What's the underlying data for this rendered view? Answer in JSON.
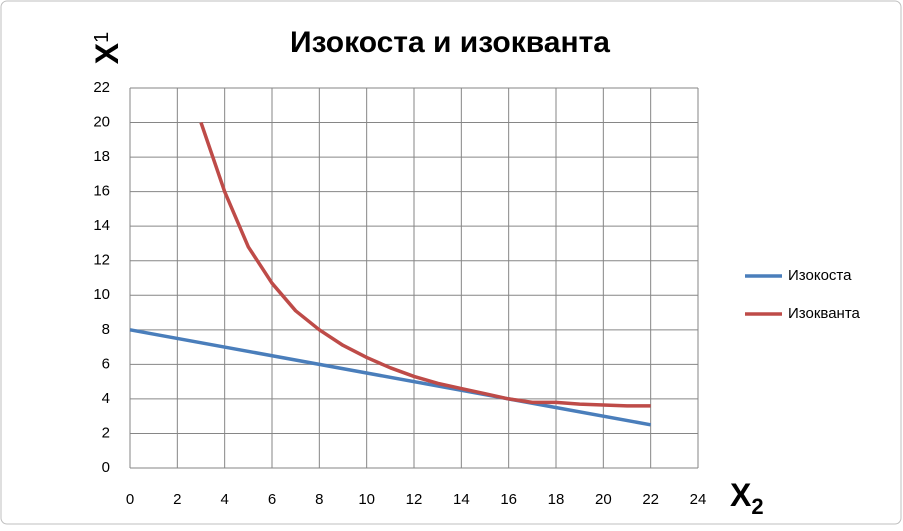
{
  "chart_data": {
    "type": "line",
    "title": "Изокоста и изокванта",
    "x_label": {
      "text": "X",
      "subscript": "2"
    },
    "y_label": {
      "text": "X",
      "subscript": "1"
    },
    "xlim": [
      0,
      24
    ],
    "xticks": [
      0,
      2,
      4,
      6,
      8,
      10,
      12,
      14,
      16,
      18,
      20,
      22,
      24
    ],
    "ylim": [
      0,
      22
    ],
    "yticks": [
      0,
      2,
      4,
      6,
      8,
      10,
      12,
      14,
      16,
      18,
      20,
      22
    ],
    "grid": true,
    "legend": "right",
    "series": [
      {
        "name": "Изокоста",
        "color": "#4a7ebb",
        "x": [
          0,
          22
        ],
        "values": [
          8,
          2.5
        ]
      },
      {
        "name": "Изокванта",
        "color": "#be4b48",
        "x": [
          3,
          4,
          5,
          6,
          7,
          8,
          9,
          10,
          11,
          12,
          13,
          14,
          15,
          16,
          17,
          18,
          19,
          20,
          21,
          22
        ],
        "values": [
          20,
          16,
          12.8,
          10.7,
          9.1,
          8,
          7.1,
          6.4,
          5.8,
          5.3,
          4.9,
          4.6,
          4.3,
          4,
          3.8,
          3.8,
          3.7,
          3.65,
          3.6,
          3.6
        ]
      }
    ]
  }
}
